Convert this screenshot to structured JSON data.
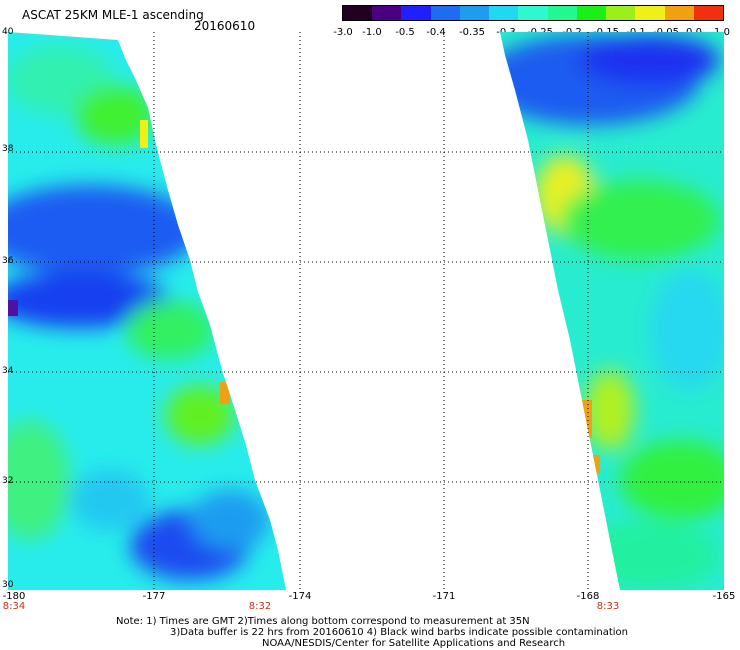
{
  "header": {
    "title": "ASCAT 25KM MLE-1 ascending",
    "date": "20160610"
  },
  "colorbar": {
    "colors": [
      "#220022",
      "#4a0080",
      "#2020ff",
      "#1e6cf0",
      "#1e9cf0",
      "#20d8f0",
      "#2ef8d0",
      "#20f890",
      "#18f018",
      "#9af018",
      "#f0f018",
      "#f0a010",
      "#f03010"
    ],
    "tick_labels": [
      "-3.0",
      "-1.0",
      "-0.5",
      "-0.4",
      "-0.35",
      "-0.3",
      "-0.25",
      "-0.2",
      "-0.15",
      "-0.1",
      "-0.05",
      "0.0",
      "1.0"
    ]
  },
  "map": {
    "lat_labels": [
      "40",
      "38",
      "36",
      "34",
      "32",
      "30"
    ],
    "lon_labels": [
      "-180",
      "-177",
      "-174",
      "-171",
      "-168",
      "-165"
    ],
    "time_labels": [
      "8:34",
      "8:32",
      "8:33"
    ],
    "colors": {
      "grid": "#000000",
      "time": "#d03010"
    }
  },
  "footer": {
    "line1": "Note: 1) Times are GMT 2)Times along bottom correspond to measurement at 35N",
    "line2": "3)Data buffer is 22 hrs from 20160610 4) Black wind barbs indicate possible contamination",
    "line3": "NOAA/NESDIS/Center for Satellite Applications and Research"
  }
}
